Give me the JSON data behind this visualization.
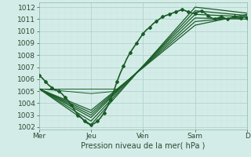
{
  "background_color": "#d4ece7",
  "grid_color_major": "#b0d4ce",
  "grid_color_minor": "#c8e5e0",
  "line_color": "#1a5c28",
  "xlabel": "Pression niveau de la mer( hPa )",
  "ylim": [
    1001.8,
    1012.4
  ],
  "xlim": [
    0,
    192
  ],
  "yticks": [
    1002,
    1003,
    1004,
    1005,
    1006,
    1007,
    1008,
    1009,
    1010,
    1011,
    1012
  ],
  "day_labels": [
    "Mer",
    "Jeu",
    "Ven",
    "Sam",
    "D"
  ],
  "day_positions": [
    0,
    48,
    96,
    144,
    192
  ],
  "series": [
    {
      "x": [
        0,
        3,
        6,
        9,
        12,
        15,
        18,
        21,
        24,
        27,
        30,
        33,
        36,
        39,
        42,
        45,
        48,
        51,
        54,
        57,
        60,
        63,
        66,
        69,
        72,
        75,
        78,
        81,
        84,
        87,
        90,
        93,
        96,
        99,
        102,
        105,
        108,
        111,
        114,
        117,
        120,
        123,
        126,
        129,
        132,
        135,
        138,
        141,
        144,
        147,
        150,
        153,
        156,
        159,
        162,
        165,
        168,
        171,
        174,
        177,
        180,
        183,
        186,
        189,
        192
      ],
      "y": [
        1006.3,
        1006.1,
        1005.8,
        1005.5,
        1005.3,
        1005.1,
        1005.0,
        1004.8,
        1004.5,
        1004.2,
        1003.8,
        1003.4,
        1003.0,
        1002.8,
        1002.5,
        1002.3,
        1002.2,
        1002.3,
        1002.5,
        1002.8,
        1003.2,
        1003.7,
        1004.3,
        1005.0,
        1005.8,
        1006.5,
        1007.1,
        1007.7,
        1008.2,
        1008.6,
        1009.0,
        1009.4,
        1009.8,
        1010.1,
        1010.3,
        1010.6,
        1010.8,
        1011.0,
        1011.2,
        1011.3,
        1011.4,
        1011.5,
        1011.6,
        1011.7,
        1011.8,
        1011.7,
        1011.6,
        1011.5,
        1011.5,
        1011.6,
        1011.7,
        1011.5,
        1011.3,
        1011.1,
        1011.0,
        1011.1,
        1011.2,
        1011.1,
        1011.0,
        1011.1,
        1011.2,
        1011.1,
        1011.1,
        1011.2,
        1011.1
      ],
      "style": "dotted_marker",
      "linewidth": 1.2,
      "markersize": 2.0,
      "markevery": 2
    },
    {
      "x": [
        0,
        48,
        144,
        192
      ],
      "y": [
        1005.2,
        1002.2,
        1012.0,
        1011.5
      ],
      "style": "solid",
      "linewidth": 0.9
    },
    {
      "x": [
        0,
        48,
        144,
        192
      ],
      "y": [
        1005.2,
        1002.5,
        1011.7,
        1011.3
      ],
      "style": "solid",
      "linewidth": 0.9
    },
    {
      "x": [
        0,
        48,
        144,
        192
      ],
      "y": [
        1005.2,
        1002.8,
        1011.4,
        1011.2
      ],
      "style": "solid",
      "linewidth": 0.9
    },
    {
      "x": [
        0,
        48,
        144,
        192
      ],
      "y": [
        1005.2,
        1003.0,
        1011.1,
        1011.0
      ],
      "style": "solid",
      "linewidth": 0.9
    },
    {
      "x": [
        0,
        48,
        144,
        192
      ],
      "y": [
        1005.2,
        1003.2,
        1010.8,
        1011.2
      ],
      "style": "solid",
      "linewidth": 0.9
    },
    {
      "x": [
        0,
        48,
        144,
        192
      ],
      "y": [
        1005.2,
        1003.4,
        1010.5,
        1011.4
      ],
      "style": "solid",
      "linewidth": 0.9
    },
    {
      "x": [
        0,
        48,
        72
      ],
      "y": [
        1005.2,
        1005.2,
        1005.2
      ],
      "style": "solid",
      "linewidth": 0.7
    },
    {
      "x": [
        0,
        48,
        72
      ],
      "y": [
        1005.2,
        1004.8,
        1005.0
      ],
      "style": "solid",
      "linewidth": 0.7
    }
  ]
}
